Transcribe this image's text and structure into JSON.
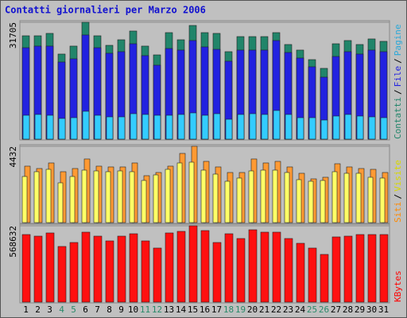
{
  "chart_data": [
    {
      "type": "bar",
      "title": "Contatti giornalieri per Marzo 2006",
      "legend_separator": "/",
      "ylim": [
        0,
        31705
      ],
      "yticks": [
        31705
      ],
      "grid": true,
      "series": [
        {
          "name": "Contatti",
          "color": "#21856a",
          "label_color": "#21856a",
          "values": [
            28040,
            28040,
            28690,
            23080,
            25240,
            31705,
            28040,
            25450,
            26960,
            29330,
            25240,
            22860,
            28900,
            26960,
            30840,
            28900,
            28690,
            23730,
            27820,
            27820,
            27820,
            28900,
            25670,
            24160,
            21570,
            19200,
            25880,
            26750,
            25670,
            27180,
            26530
          ]
        },
        {
          "name": "File",
          "color": "#2222e0",
          "label_color": "#2222e0",
          "values": [
            24800,
            25240,
            25240,
            20920,
            21790,
            28260,
            24800,
            23300,
            23730,
            25880,
            22650,
            20060,
            24590,
            24160,
            26750,
            25020,
            24370,
            21140,
            24160,
            24160,
            24160,
            26750,
            23510,
            22000,
            19630,
            16820,
            22430,
            23730,
            23080,
            24160,
            23730
          ]
        },
        {
          "name": "Pagine",
          "color": "#33ccff",
          "label_color": "#2aa8d8",
          "values": [
            6470,
            6690,
            6470,
            5610,
            5820,
            7550,
            6470,
            6040,
            6040,
            6900,
            6690,
            6470,
            6470,
            6690,
            7120,
            6470,
            6900,
            5390,
            6690,
            6900,
            6690,
            7770,
            6690,
            5820,
            5820,
            5180,
            6260,
            6690,
            6260,
            6040,
            5820
          ]
        }
      ]
    },
    {
      "type": "bar",
      "legend_separator": "/",
      "ylim": [
        0,
        4432
      ],
      "yticks": [
        4432
      ],
      "grid": true,
      "series": [
        {
          "name": "Siti",
          "color": "#ff9a33",
          "label_color": "#ff8a00",
          "values": [
            3278,
            3140,
            3463,
            2955,
            3140,
            3694,
            3278,
            3232,
            3232,
            3463,
            2724,
            2909,
            3278,
            4017,
            4432,
            3555,
            3232,
            2909,
            2909,
            3694,
            3463,
            3555,
            3232,
            2863,
            2539,
            2632,
            3417,
            3232,
            3140,
            3093,
            2909
          ]
        },
        {
          "name": "Visite",
          "color": "#ffff66",
          "label_color": "#d8d800",
          "values": [
            2678,
            2955,
            3093,
            2309,
            2678,
            3047,
            3001,
            2955,
            3001,
            2955,
            2447,
            2770,
            3093,
            3463,
            3509,
            3047,
            2816,
            2401,
            2586,
            3001,
            3047,
            3047,
            2909,
            2493,
            2401,
            2447,
            2955,
            2863,
            2863,
            2632,
            2586
          ]
        }
      ]
    },
    {
      "type": "bar",
      "ylim": [
        0,
        568632
      ],
      "yticks": [
        568632
      ],
      "grid": true,
      "categories": [
        "1",
        "2",
        "3",
        "4",
        "5",
        "6",
        "7",
        "8",
        "9",
        "10",
        "11",
        "12",
        "13",
        "14",
        "15",
        "16",
        "17",
        "18",
        "19",
        "20",
        "21",
        "22",
        "23",
        "24",
        "25",
        "26",
        "27",
        "28",
        "29",
        "30",
        "31"
      ],
      "category_colors": [
        "#000",
        "#000",
        "#000",
        "#2a8a6a",
        "#2a8a6a",
        "#000",
        "#000",
        "#000",
        "#000",
        "#000",
        "#2a8a6a",
        "#2a8a6a",
        "#000",
        "#000",
        "#000",
        "#000",
        "#000",
        "#2a8a6a",
        "#2a8a6a",
        "#000",
        "#000",
        "#000",
        "#000",
        "#000",
        "#2a8a6a",
        "#2a8a6a",
        "#000",
        "#000",
        "#000",
        "#000",
        "#000"
      ],
      "series": [
        {
          "name": "KBytes",
          "color": "#ff1010",
          "label_color": "#ff0000",
          "values": [
            503460,
            491610,
            515300,
            414610,
            444230,
            521220,
            491610,
            456070,
            491610,
            509380,
            456070,
            402760,
            515300,
            527150,
            568632,
            533070,
            444230,
            509380,
            473840,
            538990,
            521220,
            521220,
            473840,
            438300,
            402760,
            355380,
            485690,
            491610,
            503460,
            503460,
            503460
          ]
        }
      ]
    }
  ]
}
